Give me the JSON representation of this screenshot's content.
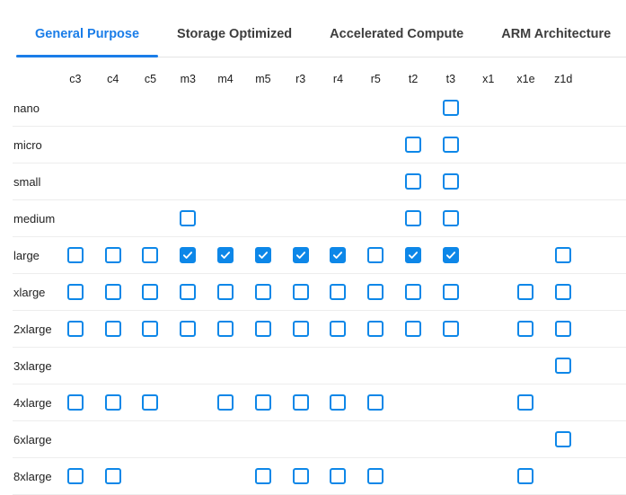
{
  "tabs": [
    {
      "label": "General Purpose",
      "active": true
    },
    {
      "label": "Storage Optimized",
      "active": false
    },
    {
      "label": "Accelerated Compute",
      "active": false
    },
    {
      "label": "ARM Architecture",
      "active": false
    }
  ],
  "matrix": {
    "columns": [
      "c3",
      "c4",
      "c5",
      "m3",
      "m4",
      "m5",
      "r3",
      "r4",
      "r5",
      "t2",
      "t3",
      "x1",
      "x1e",
      "z1d"
    ],
    "rows": [
      {
        "label": "nano",
        "boxes": {
          "t3": false
        }
      },
      {
        "label": "micro",
        "boxes": {
          "t2": false,
          "t3": false
        }
      },
      {
        "label": "small",
        "boxes": {
          "t2": false,
          "t3": false
        }
      },
      {
        "label": "medium",
        "boxes": {
          "m3": false,
          "t2": false,
          "t3": false
        }
      },
      {
        "label": "large",
        "boxes": {
          "c3": false,
          "c4": false,
          "c5": false,
          "m3": true,
          "m4": true,
          "m5": true,
          "r3": true,
          "r4": true,
          "r5": false,
          "t2": true,
          "t3": true,
          "z1d": false
        }
      },
      {
        "label": "xlarge",
        "boxes": {
          "c3": false,
          "c4": false,
          "c5": false,
          "m3": false,
          "m4": false,
          "m5": false,
          "r3": false,
          "r4": false,
          "r5": false,
          "t2": false,
          "t3": false,
          "x1e": false,
          "z1d": false
        }
      },
      {
        "label": "2xlarge",
        "boxes": {
          "c3": false,
          "c4": false,
          "c5": false,
          "m3": false,
          "m4": false,
          "m5": false,
          "r3": false,
          "r4": false,
          "r5": false,
          "t2": false,
          "t3": false,
          "x1e": false,
          "z1d": false
        }
      },
      {
        "label": "3xlarge",
        "boxes": {
          "z1d": false
        }
      },
      {
        "label": "4xlarge",
        "boxes": {
          "c3": false,
          "c4": false,
          "c5": false,
          "m4": false,
          "m5": false,
          "r3": false,
          "r4": false,
          "r5": false,
          "x1e": false
        }
      },
      {
        "label": "6xlarge",
        "boxes": {
          "z1d": false
        }
      },
      {
        "label": "8xlarge",
        "boxes": {
          "c3": false,
          "c4": false,
          "m5": false,
          "r3": false,
          "r4": false,
          "r5": false,
          "x1e": false
        }
      }
    ]
  },
  "colors": {
    "tab_accent": "#1a7de8",
    "checkbox_accent": "#0d87e8",
    "row_divider": "#ededed"
  }
}
